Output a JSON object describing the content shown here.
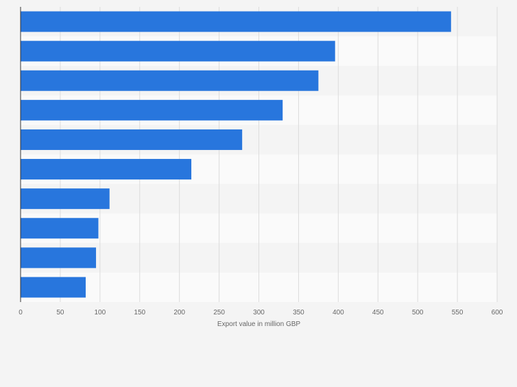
{
  "chart_data": {
    "type": "bar",
    "orientation": "horizontal",
    "title": "",
    "xlabel": "Export value in million GBP",
    "ylabel": "",
    "xlim": [
      0,
      600
    ],
    "x_ticks": [
      0,
      50,
      100,
      150,
      200,
      250,
      300,
      350,
      400,
      450,
      500,
      550,
      600
    ],
    "categories": [
      "",
      "",
      "",
      "",
      "",
      "",
      "",
      "",
      "",
      ""
    ],
    "values": [
      542,
      396,
      375,
      330,
      279,
      215,
      112,
      98,
      95,
      82
    ],
    "grid": "vertical",
    "bar_color": "#2876dd",
    "band_colors": [
      "#f4f4f4",
      "#fafafa"
    ]
  }
}
